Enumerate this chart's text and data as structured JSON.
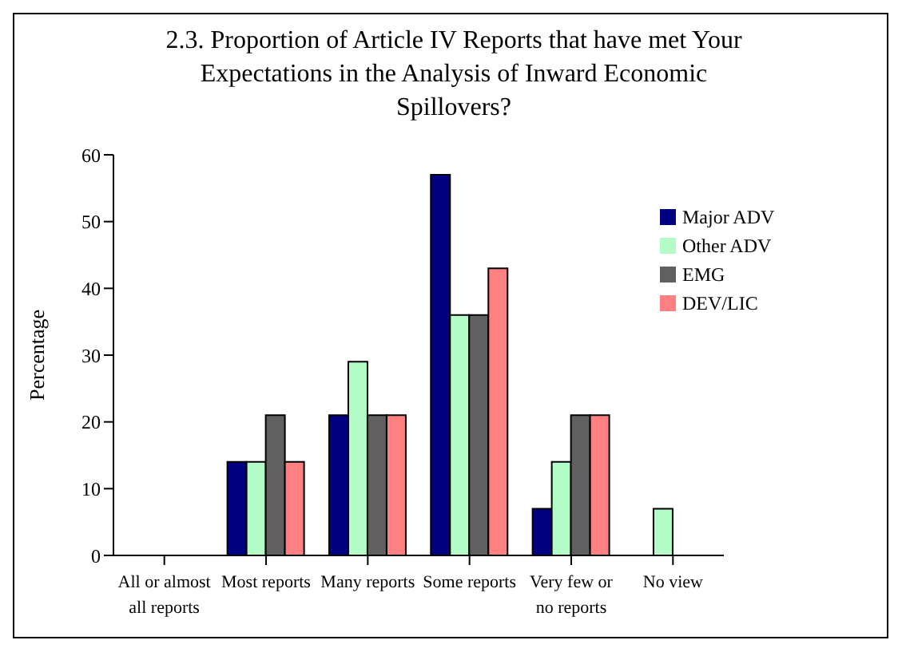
{
  "chart_data": {
    "type": "bar",
    "title": "2.3. Proportion of Article IV Reports that have met Your Expectations in the Analysis of Inward Economic Spillovers?",
    "ylabel": "Percentage",
    "categories": [
      "All or almost all reports",
      "Most reports",
      "Many reports",
      "Some reports",
      "Very few or no reports",
      "No view"
    ],
    "series": [
      {
        "name": "Major ADV",
        "color": "#000080",
        "values": [
          0,
          14,
          21,
          57,
          7,
          0
        ]
      },
      {
        "name": "Other ADV",
        "color": "#b3fcc8",
        "values": [
          0,
          14,
          29,
          36,
          14,
          7
        ]
      },
      {
        "name": "EMG",
        "color": "#606060",
        "values": [
          0,
          21,
          21,
          36,
          21,
          0
        ]
      },
      {
        "name": "DEV/LIC",
        "color": "#ff8080",
        "values": [
          0,
          14,
          21,
          43,
          21,
          0
        ]
      }
    ],
    "ylim": [
      0,
      60
    ],
    "yticks": [
      0,
      10,
      20,
      30,
      40,
      50,
      60
    ],
    "grid": false,
    "legend": "top right"
  }
}
